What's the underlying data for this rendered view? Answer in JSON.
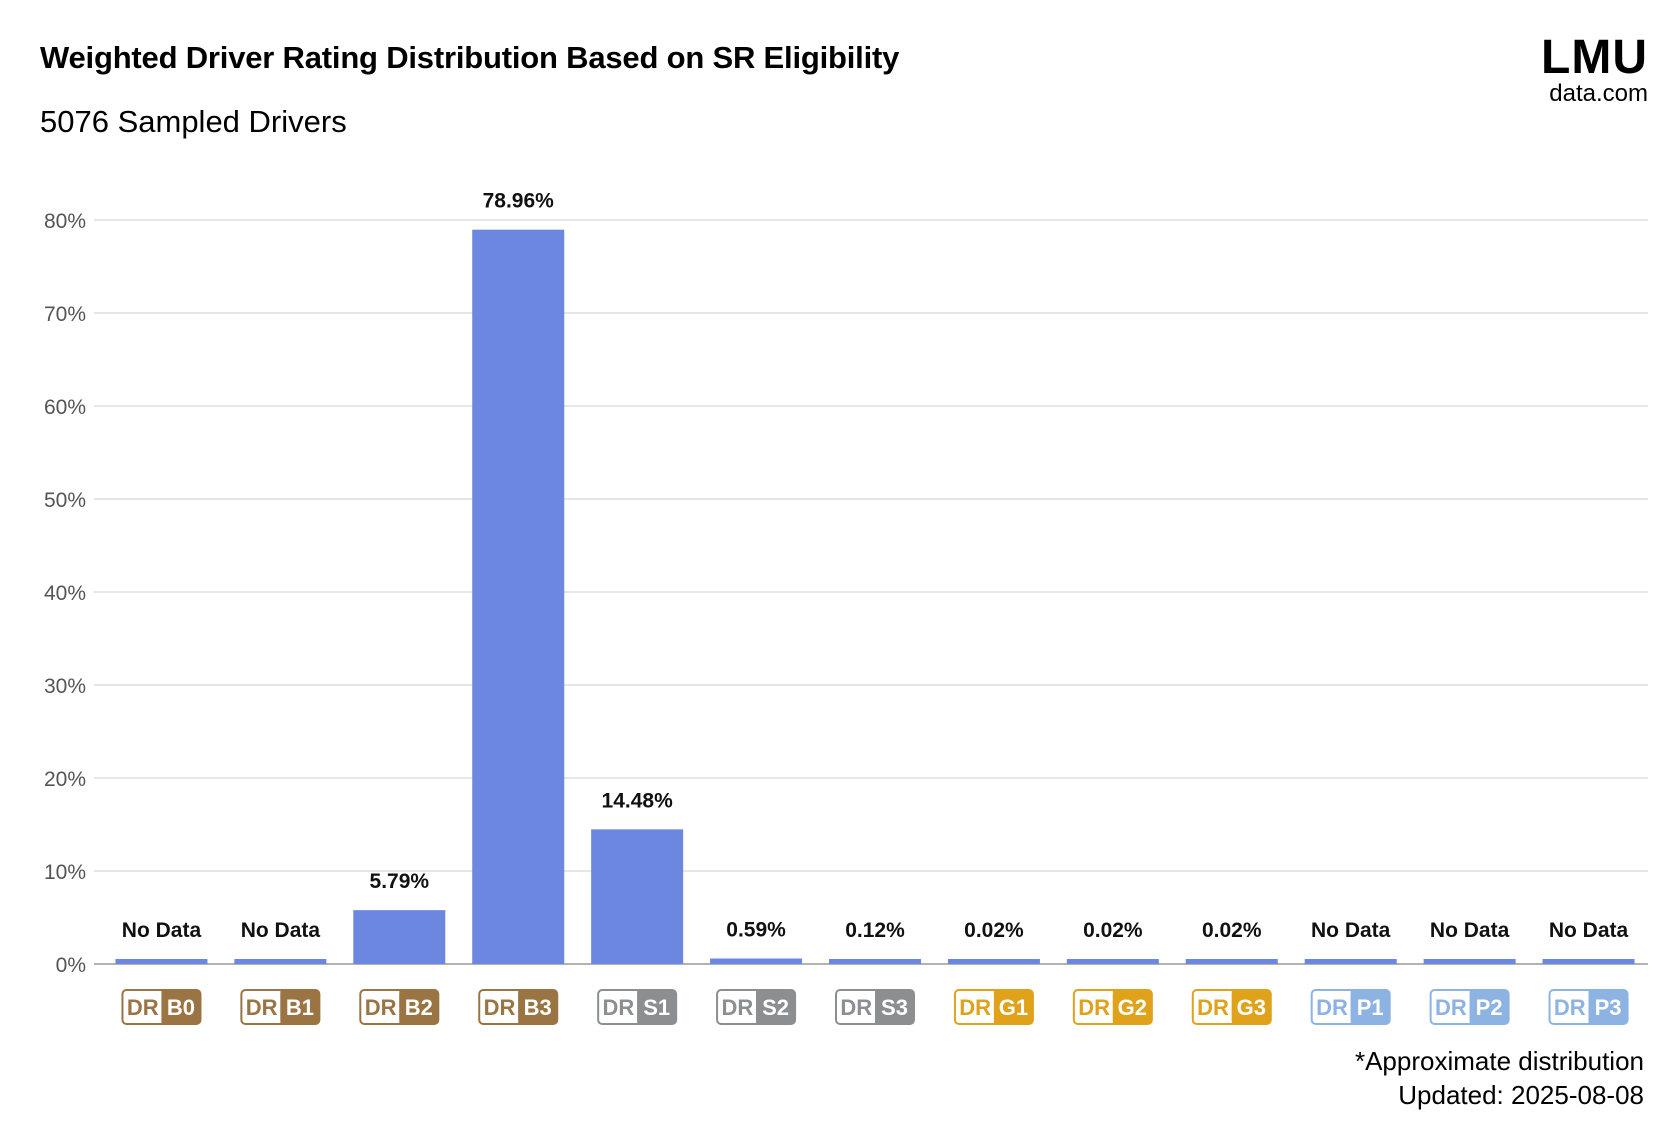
{
  "header": {
    "title": "Weighted Driver Rating Distribution Based on SR Eligibility",
    "subtitle": "5076 Sampled Drivers"
  },
  "logo": {
    "main": "LMU",
    "sub": "data.com"
  },
  "footer": {
    "note": "*Approximate distribution",
    "updated": "Updated: 2025-08-08"
  },
  "chart_data": {
    "type": "bar",
    "title": "Weighted Driver Rating Distribution Based on SR Eligibility",
    "subtitle": "5076 Sampled Drivers",
    "categories": [
      "DR B0",
      "DR B1",
      "DR B2",
      "DR B3",
      "DR S1",
      "DR S2",
      "DR S3",
      "DR G1",
      "DR G2",
      "DR G3",
      "DR P1",
      "DR P2",
      "DR P3"
    ],
    "badges": [
      {
        "left": "DR",
        "right": "B0",
        "tier": "bronze"
      },
      {
        "left": "DR",
        "right": "B1",
        "tier": "bronze"
      },
      {
        "left": "DR",
        "right": "B2",
        "tier": "bronze"
      },
      {
        "left": "DR",
        "right": "B3",
        "tier": "bronze"
      },
      {
        "left": "DR",
        "right": "S1",
        "tier": "silver"
      },
      {
        "left": "DR",
        "right": "S2",
        "tier": "silver"
      },
      {
        "left": "DR",
        "right": "S3",
        "tier": "silver"
      },
      {
        "left": "DR",
        "right": "G1",
        "tier": "gold"
      },
      {
        "left": "DR",
        "right": "G2",
        "tier": "gold"
      },
      {
        "left": "DR",
        "right": "G3",
        "tier": "gold"
      },
      {
        "left": "DR",
        "right": "P1",
        "tier": "platinum"
      },
      {
        "left": "DR",
        "right": "P2",
        "tier": "platinum"
      },
      {
        "left": "DR",
        "right": "P3",
        "tier": "platinum"
      }
    ],
    "values": [
      null,
      null,
      5.79,
      78.96,
      14.48,
      0.59,
      0.12,
      0.02,
      0.02,
      0.02,
      null,
      null,
      null
    ],
    "data_labels": [
      "No Data",
      "No Data",
      "5.79%",
      "78.96%",
      "14.48%",
      "0.59%",
      "0.12%",
      "0.02%",
      "0.02%",
      "0.02%",
      "No Data",
      "No Data",
      "No Data"
    ],
    "ylim": [
      0,
      80
    ],
    "yticks": [
      0,
      10,
      20,
      30,
      40,
      50,
      60,
      70,
      80
    ],
    "ytick_labels": [
      "0%",
      "10%",
      "20%",
      "30%",
      "40%",
      "50%",
      "60%",
      "70%",
      "80%"
    ],
    "grid": true,
    "bar_color": "#6b87e0",
    "tier_colors": {
      "bronze": "#9a7443",
      "silver": "#8c8f92",
      "gold": "#e0a21b",
      "platinum": "#8db3e2"
    }
  }
}
